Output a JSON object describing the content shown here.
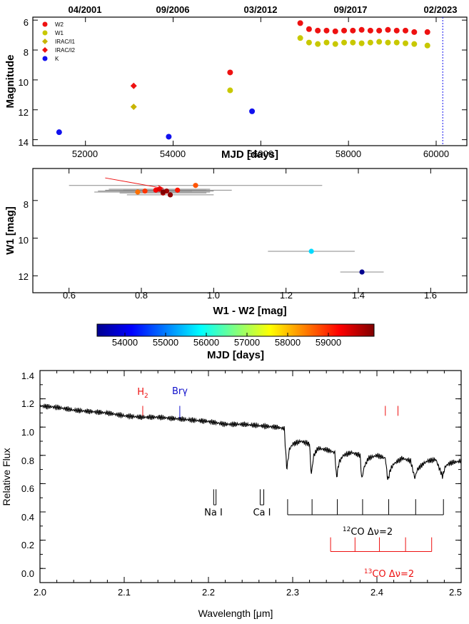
{
  "chart_data": [
    {
      "type": "scatter",
      "xlabel": "MJD [days]",
      "ylabel": "Magnitude",
      "xlim": [
        50800,
        60700
      ],
      "ylim": [
        14.4,
        5.8
      ],
      "y_inverted": true,
      "x_ticks": [
        "52000",
        "54000",
        "56000",
        "58000",
        "60000"
      ],
      "y_ticks": [
        "6",
        "8",
        "10",
        "12",
        "14"
      ],
      "top_axis_labels": [
        {
          "mjd": 51900,
          "label": "04/2001"
        },
        {
          "mjd": 53900,
          "label": "09/2006"
        },
        {
          "mjd": 55900,
          "label": "03/2012"
        },
        {
          "mjd": 57950,
          "label": "09/2017"
        },
        {
          "mjd": 60000,
          "label": "02/2023"
        }
      ],
      "vline_mjd": 60150,
      "legend_position": "top-left",
      "series": [
        {
          "name": "W2",
          "color": "#ee1111",
          "marker": "circle",
          "x": [
            55300,
            56900,
            57100,
            57300,
            57500,
            57700,
            57900,
            58100,
            58300,
            58500,
            58700,
            58900,
            59100,
            59300,
            59500,
            59800
          ],
          "y": [
            9.5,
            6.2,
            6.6,
            6.7,
            6.7,
            6.75,
            6.7,
            6.7,
            6.65,
            6.7,
            6.7,
            6.65,
            6.7,
            6.7,
            6.8,
            6.8
          ]
        },
        {
          "name": "W1",
          "color": "#c8c800",
          "marker": "circle",
          "x": [
            55300,
            56900,
            57100,
            57300,
            57500,
            57700,
            57900,
            58100,
            58300,
            58500,
            58700,
            58900,
            59100,
            59300,
            59500,
            59800
          ],
          "y": [
            10.7,
            7.2,
            7.5,
            7.6,
            7.5,
            7.6,
            7.5,
            7.5,
            7.55,
            7.5,
            7.45,
            7.5,
            7.5,
            7.55,
            7.6,
            7.7
          ]
        },
        {
          "name": "IRAC/I1",
          "color": "#c8b400",
          "marker": "diamond",
          "x": [
            53100
          ],
          "y": [
            11.8
          ]
        },
        {
          "name": "IRAC/I2",
          "color": "#ee1111",
          "marker": "diamond",
          "x": [
            53100
          ],
          "y": [
            10.4
          ]
        },
        {
          "name": "K",
          "color": "#1111ee",
          "marker": "circle",
          "x": [
            51400,
            53900,
            55800
          ],
          "y": [
            13.5,
            13.8,
            12.1
          ]
        }
      ]
    },
    {
      "type": "scatter",
      "xlabel": "W1 - W2 [mag]",
      "ylabel": "W1 [mag]",
      "xlim": [
        0.5,
        1.7
      ],
      "ylim": [
        12.9,
        6.3
      ],
      "y_inverted": true,
      "x_ticks": [
        "0.6",
        "0.8",
        "1.0",
        "1.2",
        "1.4",
        "1.6"
      ],
      "y_ticks": [
        "8",
        "10",
        "12"
      ],
      "colorbar": {
        "label": "MJD [days]",
        "range": [
          53000,
          59800
        ],
        "ticks": [
          "54000",
          "55000",
          "56000",
          "57000",
          "58000",
          "59000"
        ]
      },
      "arrow": {
        "from": [
          0.7,
          6.8
        ],
        "to": [
          0.86,
          7.35
        ],
        "color": "#ee1111"
      },
      "points": [
        {
          "x": 0.95,
          "y": 7.2,
          "xerr": 0.35,
          "mjd": 58400
        },
        {
          "x": 0.9,
          "y": 7.45,
          "xerr": 0.15,
          "mjd": 58800
        },
        {
          "x": 0.79,
          "y": 7.55,
          "xerr": 0.12,
          "mjd": 58200
        },
        {
          "x": 0.81,
          "y": 7.5,
          "xerr": 0.13,
          "mjd": 58600
        },
        {
          "x": 0.84,
          "y": 7.45,
          "xerr": 0.14,
          "mjd": 59000
        },
        {
          "x": 0.85,
          "y": 7.4,
          "xerr": 0.14,
          "mjd": 59200
        },
        {
          "x": 0.86,
          "y": 7.6,
          "xerr": 0.12,
          "mjd": 59400
        },
        {
          "x": 0.87,
          "y": 7.5,
          "xerr": 0.13,
          "mjd": 59600
        },
        {
          "x": 0.88,
          "y": 7.7,
          "xerr": 0.12,
          "mjd": 59700
        },
        {
          "x": 0.86,
          "y": 7.55,
          "xerr": 0.13,
          "mjd": 59800
        },
        {
          "x": 1.27,
          "y": 10.7,
          "xerr": 0.12,
          "mjd": 55300
        },
        {
          "x": 1.41,
          "y": 11.8,
          "xerr": 0.06,
          "mjd": 53000
        }
      ]
    },
    {
      "type": "line",
      "xlabel": "Wavelength [μm]",
      "ylabel": "Relative Flux",
      "xlim": [
        2.0,
        2.5
      ],
      "ylim": [
        -0.1,
        1.4
      ],
      "x_ticks": [
        "2.0",
        "2.1",
        "2.2",
        "2.3",
        "2.4",
        "2.5"
      ],
      "y_ticks": [
        "0.0",
        "0.2",
        "0.4",
        "0.6",
        "0.8",
        "1.0",
        "1.2",
        "1.4"
      ],
      "line_labels": [
        {
          "text": "H",
          "sub": "2",
          "x": 2.122,
          "y": 1.2,
          "color": "#ee1111"
        },
        {
          "text": "Brγ",
          "x": 2.166,
          "y": 1.2,
          "color": "#1111cc"
        },
        {
          "text": "Na I",
          "x": 2.207,
          "y": 0.57,
          "color": "#000000"
        },
        {
          "text": "Ca I",
          "x": 2.264,
          "y": 0.57,
          "color": "#000000"
        }
      ],
      "co12": {
        "label_sup": "12",
        "label": "CO Δν=2",
        "band_heads": [
          2.294,
          2.323,
          2.353,
          2.383,
          2.414,
          2.446,
          2.479
        ]
      },
      "co13": {
        "label_sup": "13",
        "label": "CO Δν=2",
        "band_heads": [
          2.345,
          2.374,
          2.403,
          2.434,
          2.465
        ]
      },
      "extra_red_ticks": [
        2.41,
        2.425
      ],
      "spectrum": {
        "x": [
          2.0,
          2.02,
          2.04,
          2.06,
          2.08,
          2.1,
          2.12,
          2.14,
          2.16,
          2.18,
          2.2,
          2.22,
          2.24,
          2.26,
          2.28,
          2.29,
          2.293,
          2.296,
          2.3,
          2.31,
          2.32,
          2.322,
          2.325,
          2.33,
          2.34,
          2.35,
          2.352,
          2.355,
          2.36,
          2.37,
          2.38,
          2.382,
          2.385,
          2.39,
          2.4,
          2.41,
          2.413,
          2.416,
          2.42,
          2.43,
          2.44,
          2.445,
          2.448,
          2.455,
          2.46,
          2.47,
          2.478,
          2.481,
          2.485,
          2.49,
          2.5
        ],
        "y": [
          1.15,
          1.14,
          1.12,
          1.11,
          1.1,
          1.08,
          1.07,
          1.07,
          1.06,
          1.05,
          1.04,
          1.02,
          1.02,
          1.01,
          1.0,
          0.99,
          0.7,
          0.84,
          0.88,
          0.9,
          0.88,
          0.66,
          0.8,
          0.85,
          0.84,
          0.82,
          0.64,
          0.75,
          0.8,
          0.82,
          0.8,
          0.63,
          0.72,
          0.78,
          0.8,
          0.78,
          0.62,
          0.7,
          0.74,
          0.78,
          0.76,
          0.64,
          0.7,
          0.74,
          0.76,
          0.77,
          0.65,
          0.72,
          0.74,
          0.75,
          0.76
        ]
      }
    }
  ]
}
